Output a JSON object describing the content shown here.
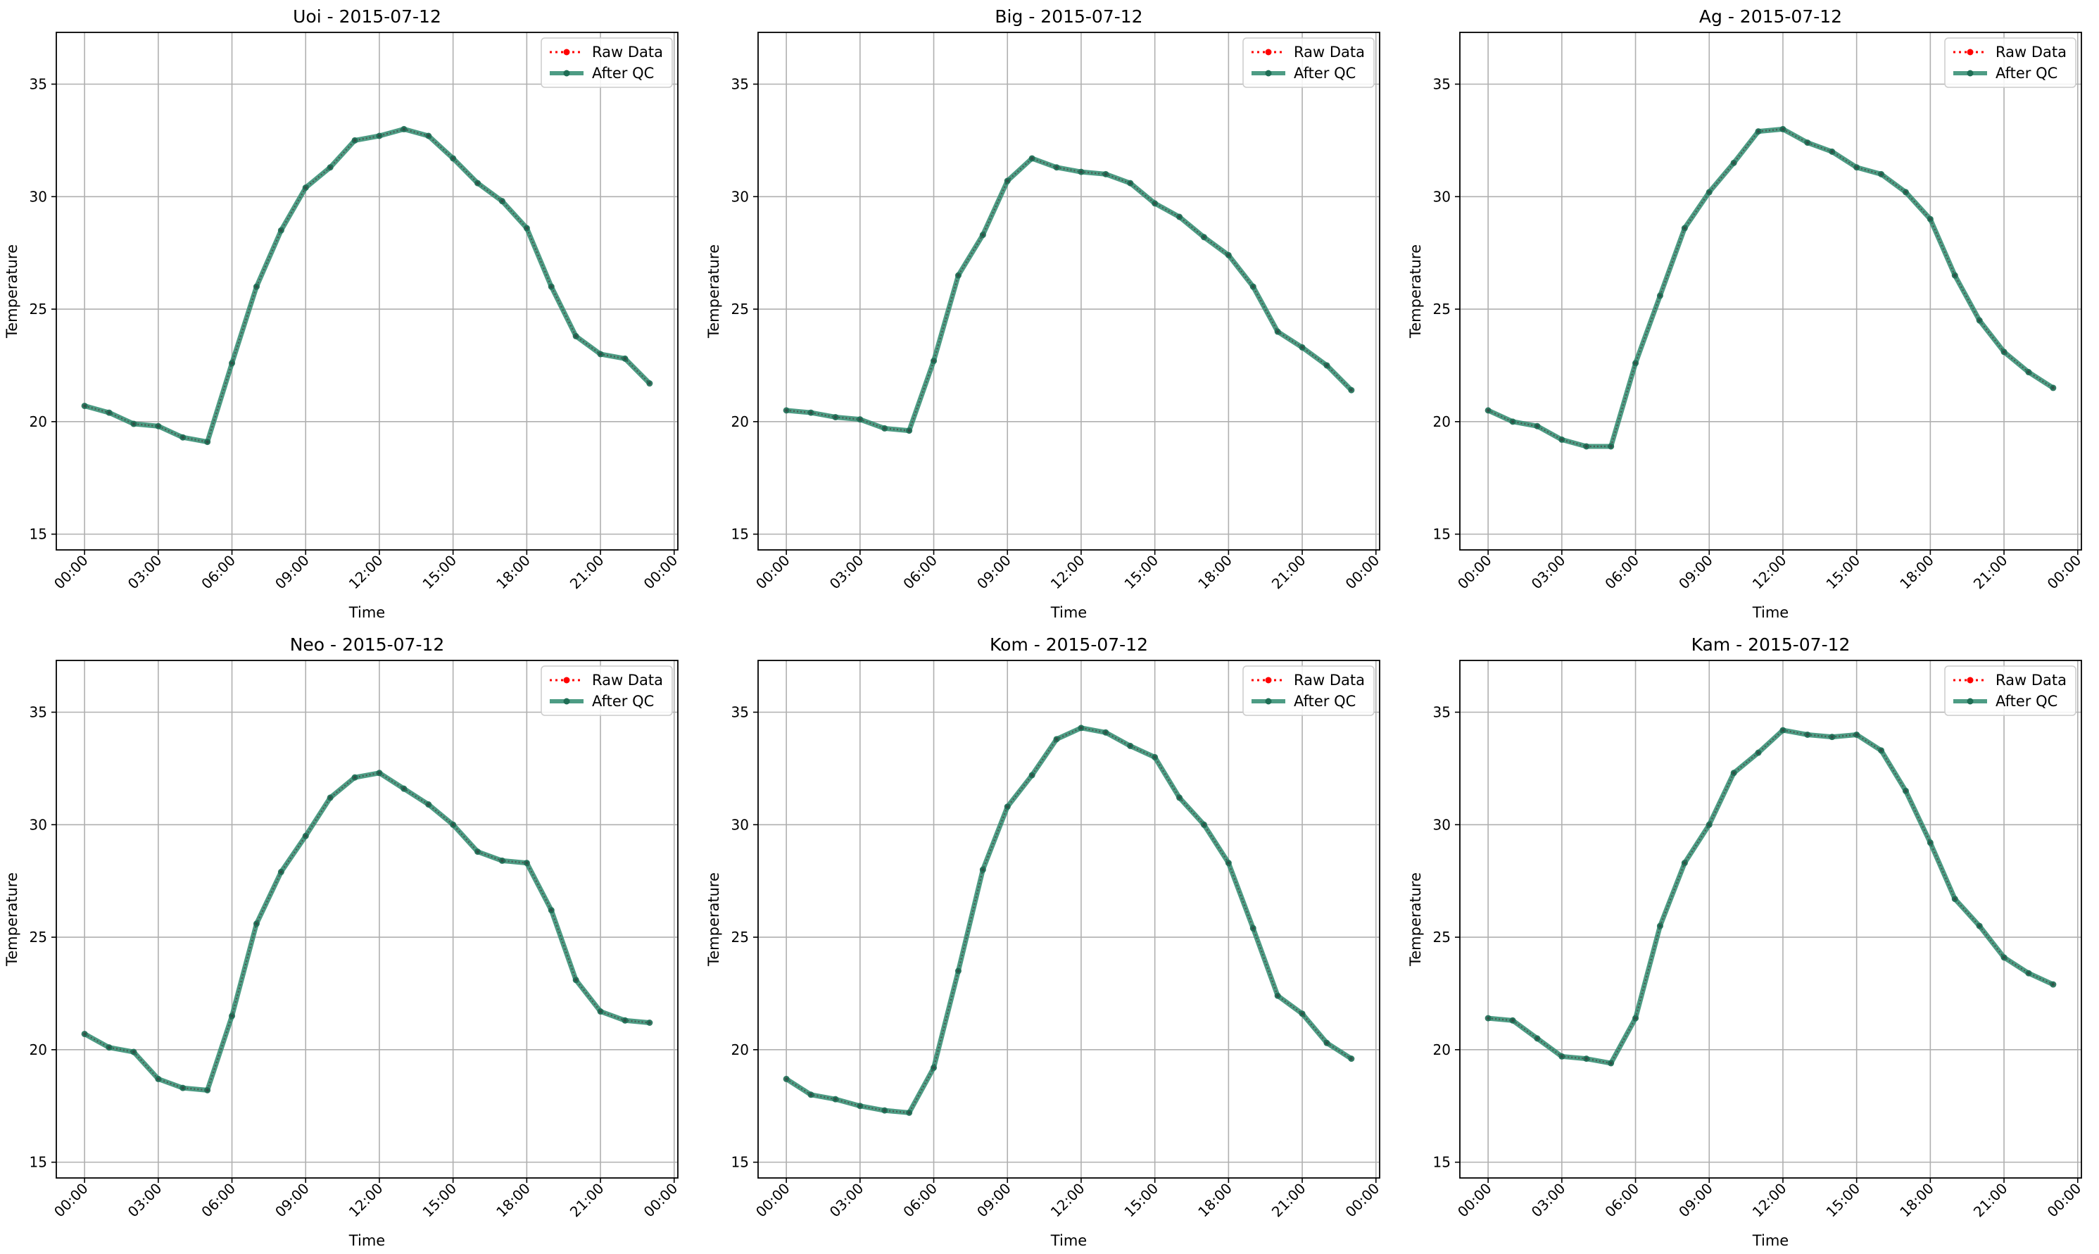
{
  "figure": {
    "legend": {
      "placement": "upper-right",
      "raw_label": "Raw Data",
      "qc_label": "After QC"
    },
    "colors": {
      "raw": "#ff0000",
      "qc": "#2e8b6e",
      "grid": "#b0b0b0",
      "axes": "#000000"
    }
  },
  "chart_data": [
    {
      "type": "line",
      "title": "Uoi - 2015-07-12",
      "xlabel": "Time",
      "ylabel": "Temperature",
      "x": [
        "00:00",
        "01:00",
        "02:00",
        "03:00",
        "04:00",
        "05:00",
        "06:00",
        "07:00",
        "08:00",
        "09:00",
        "10:00",
        "11:00",
        "12:00",
        "13:00",
        "14:00",
        "15:00",
        "16:00",
        "17:00",
        "18:00",
        "19:00",
        "20:00",
        "21:00",
        "22:00",
        "23:00"
      ],
      "xticks": [
        "00:00",
        "03:00",
        "06:00",
        "09:00",
        "12:00",
        "15:00",
        "18:00",
        "21:00",
        "00:00"
      ],
      "yticks": [
        15,
        20,
        25,
        30,
        35
      ],
      "xlim": [
        "2015-07-12 00:00",
        "2015-07-13 00:00"
      ],
      "ylim": [
        14.3,
        37.3
      ],
      "grid": true,
      "legend": "upper right",
      "series": [
        {
          "name": "Raw Data",
          "values": [
            20.7,
            20.4,
            19.9,
            19.8,
            19.3,
            19.1,
            22.6,
            26.0,
            28.5,
            30.4,
            31.3,
            32.5,
            32.7,
            33.0,
            32.7,
            31.7,
            30.6,
            29.8,
            28.6,
            26.0,
            23.8,
            23.0,
            22.8,
            21.7
          ]
        },
        {
          "name": "After QC",
          "values": [
            20.7,
            20.4,
            19.9,
            19.8,
            19.3,
            19.1,
            22.6,
            26.0,
            28.5,
            30.4,
            31.3,
            32.5,
            32.7,
            33.0,
            32.7,
            31.7,
            30.6,
            29.8,
            28.6,
            26.0,
            23.8,
            23.0,
            22.8,
            21.7
          ]
        }
      ]
    },
    {
      "type": "line",
      "title": "Big - 2015-07-12",
      "xlabel": "Time",
      "ylabel": "Temperature",
      "x": [
        "00:00",
        "01:00",
        "02:00",
        "03:00",
        "04:00",
        "05:00",
        "06:00",
        "07:00",
        "08:00",
        "09:00",
        "10:00",
        "11:00",
        "12:00",
        "13:00",
        "14:00",
        "15:00",
        "16:00",
        "17:00",
        "18:00",
        "19:00",
        "20:00",
        "21:00",
        "22:00",
        "23:00"
      ],
      "xticks": [
        "00:00",
        "03:00",
        "06:00",
        "09:00",
        "12:00",
        "15:00",
        "18:00",
        "21:00",
        "00:00"
      ],
      "yticks": [
        15,
        20,
        25,
        30,
        35
      ],
      "xlim": [
        "2015-07-12 00:00",
        "2015-07-13 00:00"
      ],
      "ylim": [
        14.3,
        37.3
      ],
      "grid": true,
      "legend": "upper right",
      "series": [
        {
          "name": "Raw Data",
          "values": [
            20.5,
            20.4,
            20.2,
            20.1,
            19.7,
            19.6,
            22.7,
            26.5,
            28.3,
            30.7,
            31.7,
            31.3,
            31.1,
            31.0,
            30.6,
            29.7,
            29.1,
            28.2,
            27.4,
            26.0,
            24.0,
            23.3,
            22.5,
            21.4
          ]
        },
        {
          "name": "After QC",
          "values": [
            20.5,
            20.4,
            20.2,
            20.1,
            19.7,
            19.6,
            22.7,
            26.5,
            28.3,
            30.7,
            31.7,
            31.3,
            31.1,
            31.0,
            30.6,
            29.7,
            29.1,
            28.2,
            27.4,
            26.0,
            24.0,
            23.3,
            22.5,
            21.4
          ]
        }
      ]
    },
    {
      "type": "line",
      "title": "Ag - 2015-07-12",
      "xlabel": "Time",
      "ylabel": "Temperature",
      "x": [
        "00:00",
        "01:00",
        "02:00",
        "03:00",
        "04:00",
        "05:00",
        "06:00",
        "07:00",
        "08:00",
        "09:00",
        "10:00",
        "11:00",
        "12:00",
        "13:00",
        "14:00",
        "15:00",
        "16:00",
        "17:00",
        "18:00",
        "19:00",
        "20:00",
        "21:00",
        "22:00",
        "23:00"
      ],
      "xticks": [
        "00:00",
        "03:00",
        "06:00",
        "09:00",
        "12:00",
        "15:00",
        "18:00",
        "21:00",
        "00:00"
      ],
      "yticks": [
        15,
        20,
        25,
        30,
        35
      ],
      "xlim": [
        "2015-07-12 00:00",
        "2015-07-13 00:00"
      ],
      "ylim": [
        14.3,
        37.3
      ],
      "grid": true,
      "legend": "upper right",
      "series": [
        {
          "name": "Raw Data",
          "values": [
            20.5,
            20.0,
            19.8,
            19.2,
            18.9,
            18.9,
            22.6,
            25.6,
            28.6,
            30.2,
            31.5,
            32.9,
            33.0,
            32.4,
            32.0,
            31.3,
            31.0,
            30.2,
            29.0,
            26.5,
            24.5,
            23.1,
            22.2,
            21.5
          ]
        },
        {
          "name": "After QC",
          "values": [
            20.5,
            20.0,
            19.8,
            19.2,
            18.9,
            18.9,
            22.6,
            25.6,
            28.6,
            30.2,
            31.5,
            32.9,
            33.0,
            32.4,
            32.0,
            31.3,
            31.0,
            30.2,
            29.0,
            26.5,
            24.5,
            23.1,
            22.2,
            21.5
          ]
        }
      ]
    },
    {
      "type": "line",
      "title": "Neo - 2015-07-12",
      "xlabel": "Time",
      "ylabel": "Temperature",
      "x": [
        "00:00",
        "01:00",
        "02:00",
        "03:00",
        "04:00",
        "05:00",
        "06:00",
        "07:00",
        "08:00",
        "09:00",
        "10:00",
        "11:00",
        "12:00",
        "13:00",
        "14:00",
        "15:00",
        "16:00",
        "17:00",
        "18:00",
        "19:00",
        "20:00",
        "21:00",
        "22:00",
        "23:00"
      ],
      "xticks": [
        "00:00",
        "03:00",
        "06:00",
        "09:00",
        "12:00",
        "15:00",
        "18:00",
        "21:00",
        "00:00"
      ],
      "yticks": [
        15,
        20,
        25,
        30,
        35
      ],
      "xlim": [
        "2015-07-12 00:00",
        "2015-07-13 00:00"
      ],
      "ylim": [
        14.3,
        37.3
      ],
      "grid": true,
      "legend": "upper right",
      "series": [
        {
          "name": "Raw Data",
          "values": [
            20.7,
            20.1,
            19.9,
            18.7,
            18.3,
            18.2,
            21.5,
            25.6,
            27.9,
            29.5,
            31.2,
            32.1,
            32.3,
            31.6,
            30.9,
            30.0,
            28.8,
            28.4,
            28.3,
            26.2,
            23.1,
            21.7,
            21.3,
            21.2
          ]
        },
        {
          "name": "After QC",
          "values": [
            20.7,
            20.1,
            19.9,
            18.7,
            18.3,
            18.2,
            21.5,
            25.6,
            27.9,
            29.5,
            31.2,
            32.1,
            32.3,
            31.6,
            30.9,
            30.0,
            28.8,
            28.4,
            28.3,
            26.2,
            23.1,
            21.7,
            21.3,
            21.2
          ]
        }
      ]
    },
    {
      "type": "line",
      "title": "Kom - 2015-07-12",
      "xlabel": "Time",
      "ylabel": "Temperature",
      "x": [
        "00:00",
        "01:00",
        "02:00",
        "03:00",
        "04:00",
        "05:00",
        "06:00",
        "07:00",
        "08:00",
        "09:00",
        "10:00",
        "11:00",
        "12:00",
        "13:00",
        "14:00",
        "15:00",
        "16:00",
        "17:00",
        "18:00",
        "19:00",
        "20:00",
        "21:00",
        "22:00",
        "23:00"
      ],
      "xticks": [
        "00:00",
        "03:00",
        "06:00",
        "09:00",
        "12:00",
        "15:00",
        "18:00",
        "21:00",
        "00:00"
      ],
      "yticks": [
        15,
        20,
        25,
        30,
        35
      ],
      "xlim": [
        "2015-07-12 00:00",
        "2015-07-13 00:00"
      ],
      "ylim": [
        14.3,
        37.3
      ],
      "grid": true,
      "legend": "upper right",
      "series": [
        {
          "name": "Raw Data",
          "values": [
            18.7,
            18.0,
            17.8,
            17.5,
            17.3,
            17.2,
            19.2,
            23.5,
            28.0,
            30.8,
            32.2,
            33.8,
            34.3,
            34.1,
            33.5,
            33.0,
            31.2,
            30.0,
            28.3,
            25.4,
            22.4,
            21.6,
            20.3,
            19.6
          ]
        },
        {
          "name": "After QC",
          "values": [
            18.7,
            18.0,
            17.8,
            17.5,
            17.3,
            17.2,
            19.2,
            23.5,
            28.0,
            30.8,
            32.2,
            33.8,
            34.3,
            34.1,
            33.5,
            33.0,
            31.2,
            30.0,
            28.3,
            25.4,
            22.4,
            21.6,
            20.3,
            19.6
          ]
        }
      ]
    },
    {
      "type": "line",
      "title": "Kam - 2015-07-12",
      "xlabel": "Time",
      "ylabel": "Temperature",
      "x": [
        "00:00",
        "01:00",
        "02:00",
        "03:00",
        "04:00",
        "05:00",
        "06:00",
        "07:00",
        "08:00",
        "09:00",
        "10:00",
        "11:00",
        "12:00",
        "13:00",
        "14:00",
        "15:00",
        "16:00",
        "17:00",
        "18:00",
        "19:00",
        "20:00",
        "21:00",
        "22:00",
        "23:00"
      ],
      "xticks": [
        "00:00",
        "03:00",
        "06:00",
        "09:00",
        "12:00",
        "15:00",
        "18:00",
        "21:00",
        "00:00"
      ],
      "yticks": [
        15,
        20,
        25,
        30,
        35
      ],
      "xlim": [
        "2015-07-12 00:00",
        "2015-07-13 00:00"
      ],
      "ylim": [
        14.3,
        37.3
      ],
      "grid": true,
      "legend": "upper right",
      "series": [
        {
          "name": "Raw Data",
          "values": [
            21.4,
            21.3,
            20.5,
            19.7,
            19.6,
            19.4,
            21.4,
            25.5,
            28.3,
            30.0,
            32.3,
            33.2,
            34.2,
            34.0,
            33.9,
            34.0,
            33.3,
            31.5,
            29.2,
            26.7,
            25.5,
            24.1,
            23.4,
            22.9
          ]
        },
        {
          "name": "After QC",
          "values": [
            21.4,
            21.3,
            20.5,
            19.7,
            19.6,
            19.4,
            21.4,
            25.5,
            28.3,
            30.0,
            32.3,
            33.2,
            34.2,
            34.0,
            33.9,
            34.0,
            33.3,
            31.5,
            29.2,
            26.7,
            25.5,
            24.1,
            23.4,
            22.9
          ]
        }
      ]
    }
  ]
}
